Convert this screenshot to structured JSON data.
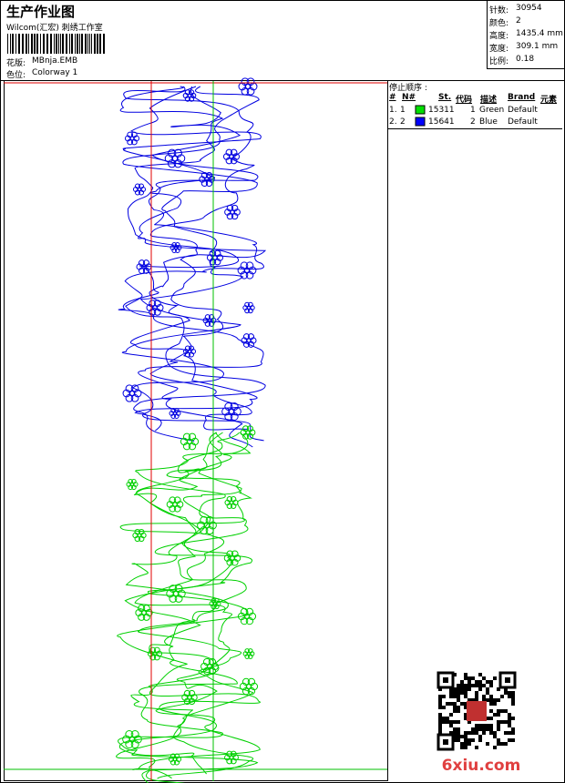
{
  "header": {
    "title": "生产作业图",
    "studio": "Wilcom(汇宏) 刺绣工作室",
    "design_label": "花版:",
    "design": "MBnja.EMB",
    "colorway_label": "色位:",
    "colorway": "Colorway 1"
  },
  "info": [
    {
      "label": "针数:",
      "value": "30954"
    },
    {
      "label": "颜色:",
      "value": "2"
    },
    {
      "label": "高度:",
      "value": "1435.4 mm"
    },
    {
      "label": "宽度:",
      "value": "309.1 mm"
    },
    {
      "label": "比例:",
      "value": "0.18"
    }
  ],
  "stop_sequence": {
    "title": "停止顺序 :",
    "headers": [
      "#",
      "N#",
      "St.",
      "代码",
      "描述",
      "Brand",
      "元素"
    ],
    "rows": [
      [
        "1.",
        "1",
        "15311",
        "1",
        "Green",
        "Default"
      ],
      [
        "2.",
        "2",
        "15641",
        "2",
        "Blue",
        "Default"
      ]
    ]
  },
  "watermark": "6xiu.com"
}
